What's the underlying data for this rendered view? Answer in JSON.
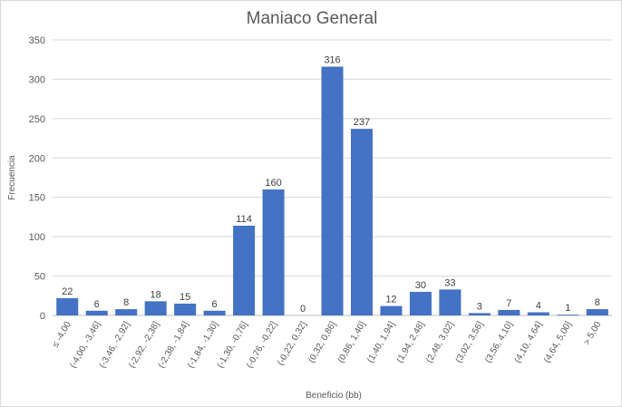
{
  "chart_data": {
    "type": "bar",
    "title": "Maniaco General",
    "xlabel": "Beneficio (bb)",
    "ylabel": "Frecuencia",
    "ylim": [
      0,
      350
    ],
    "yticks": [
      0,
      50,
      100,
      150,
      200,
      250,
      300,
      350
    ],
    "grid": true,
    "legend": "none",
    "bar_color": "#4472C4",
    "categories": [
      "≤ -4,00",
      "(-4,00, -3,46]",
      "(-3,46, -2,92]",
      "(-2,92, -2,38]",
      "(-2,38, -1,84]",
      "(-1,84, -1,30]",
      "(-1,30, -0,76]",
      "(-0,76, -0,22]",
      "(-0,22, 0,32]",
      "(0,32, 0,86]",
      "(0,86, 1,40]",
      "(1,40, 1,94]",
      "(1,94, 2,48]",
      "(2,48, 3,02]",
      "(3,02, 3,56]",
      "(3,56, 4,10]",
      "(4,10, 4,64]",
      "(4,64, 5,00]",
      "> 5,00"
    ],
    "values": [
      22,
      6,
      8,
      18,
      15,
      6,
      114,
      160,
      0,
      316,
      237,
      12,
      30,
      33,
      3,
      7,
      4,
      1,
      8
    ]
  }
}
